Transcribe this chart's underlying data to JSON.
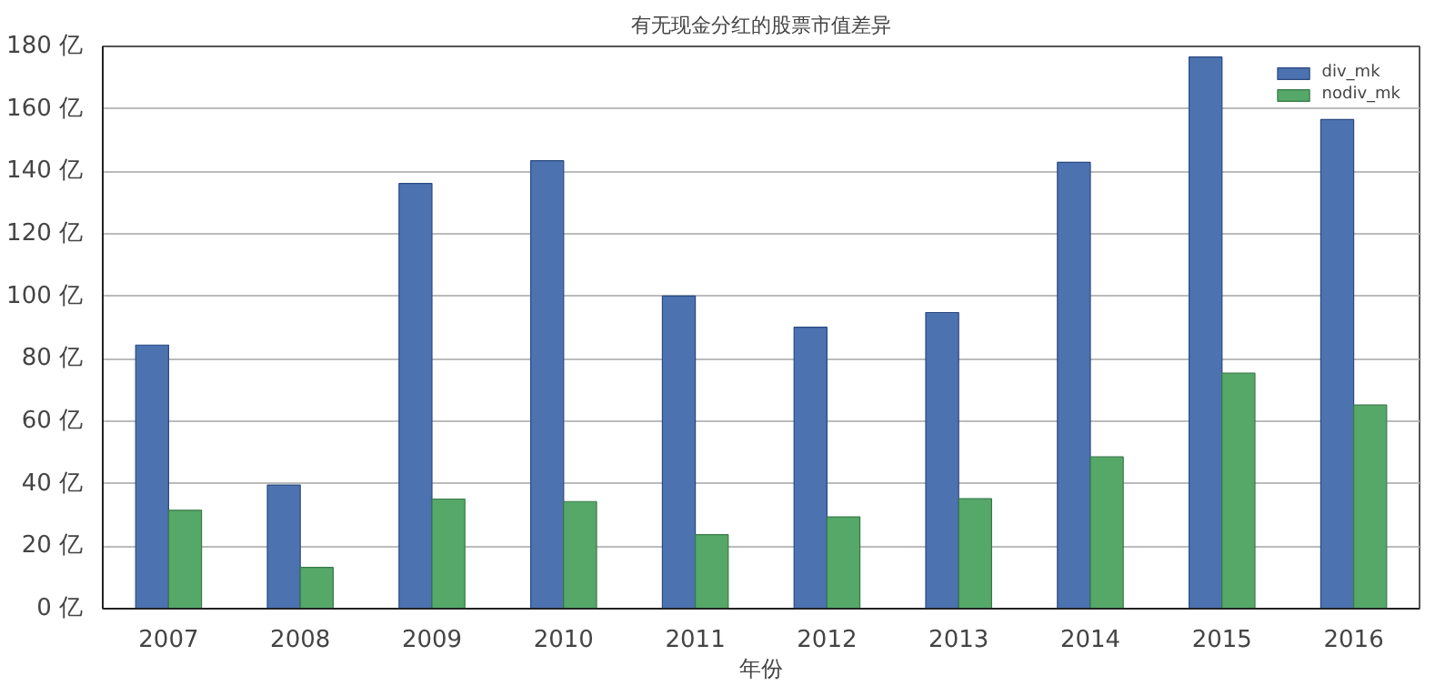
{
  "chart_data": {
    "type": "bar",
    "title": "有无现金分红的股票市值差异",
    "xlabel": "年份",
    "categories": [
      "2007",
      "2008",
      "2009",
      "2010",
      "2011",
      "2012",
      "2013",
      "2014",
      "2015",
      "2016"
    ],
    "series": [
      {
        "name": "div_mk",
        "color": "#4c72b0",
        "values": [
          84.4,
          39.6,
          136.1,
          143.4,
          100.1,
          90.1,
          94.8,
          142.9,
          176.6,
          156.6
        ]
      },
      {
        "name": "nodiv_mk",
        "color": "#55a868",
        "values": [
          31.5,
          13.2,
          35.1,
          34.3,
          23.7,
          29.4,
          35.2,
          48.6,
          75.4,
          65.2
        ]
      }
    ],
    "ylim": [
      0,
      180
    ],
    "yticks": [
      {
        "value": 0,
        "label": "0 亿"
      },
      {
        "value": 20,
        "label": "20 亿"
      },
      {
        "value": 40,
        "label": "40 亿"
      },
      {
        "value": 60,
        "label": "60 亿"
      },
      {
        "value": 80,
        "label": "80 亿"
      },
      {
        "value": 100,
        "label": "100 亿"
      },
      {
        "value": 120,
        "label": "120 亿"
      },
      {
        "value": 140,
        "label": "140 亿"
      },
      {
        "value": 160,
        "label": "160 亿"
      },
      {
        "value": 180,
        "label": "180 亿"
      }
    ],
    "grid": "y",
    "legend": "top right"
  }
}
